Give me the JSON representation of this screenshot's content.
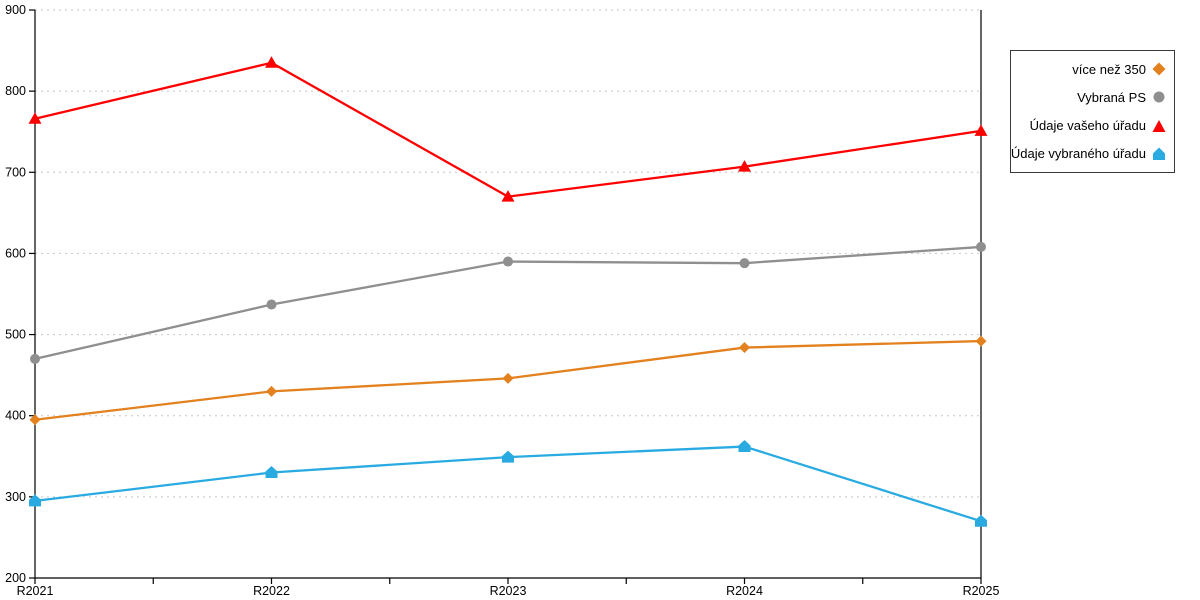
{
  "page": {
    "background": "#FFFFFF"
  },
  "chart_data": {
    "type": "line",
    "title": "",
    "xlabel": "",
    "ylabel": "",
    "categories": [
      "R2021",
      "R2022",
      "R2023",
      "R2024",
      "R2025"
    ],
    "series": [
      {
        "name": "více než 350",
        "marker": "diamond",
        "color": "#E2811E",
        "values": [
          395,
          430,
          446,
          484,
          492
        ]
      },
      {
        "name": "Vybraná PS",
        "marker": "circle",
        "color": "#8F8F8F",
        "values": [
          470,
          537,
          590,
          588,
          608
        ]
      },
      {
        "name": "Údaje vašeho úřadu",
        "marker": "triangle",
        "color": "#FF0000",
        "values": [
          766,
          835,
          670,
          707,
          751
        ]
      },
      {
        "name": "Údaje vybraného úřadu",
        "marker": "pentagon",
        "color": "#29ABE2",
        "values": [
          295,
          330,
          349,
          362,
          270
        ]
      }
    ],
    "ylim": [
      200,
      900
    ],
    "yticks": [
      200,
      300,
      400,
      500,
      600,
      700,
      800,
      900
    ],
    "grid": "horizontal-dashed",
    "gridline_color": "#C6C6C6",
    "axis_color": "#000000",
    "tick_label_color": "#000000",
    "legend_position": "right-outside"
  }
}
